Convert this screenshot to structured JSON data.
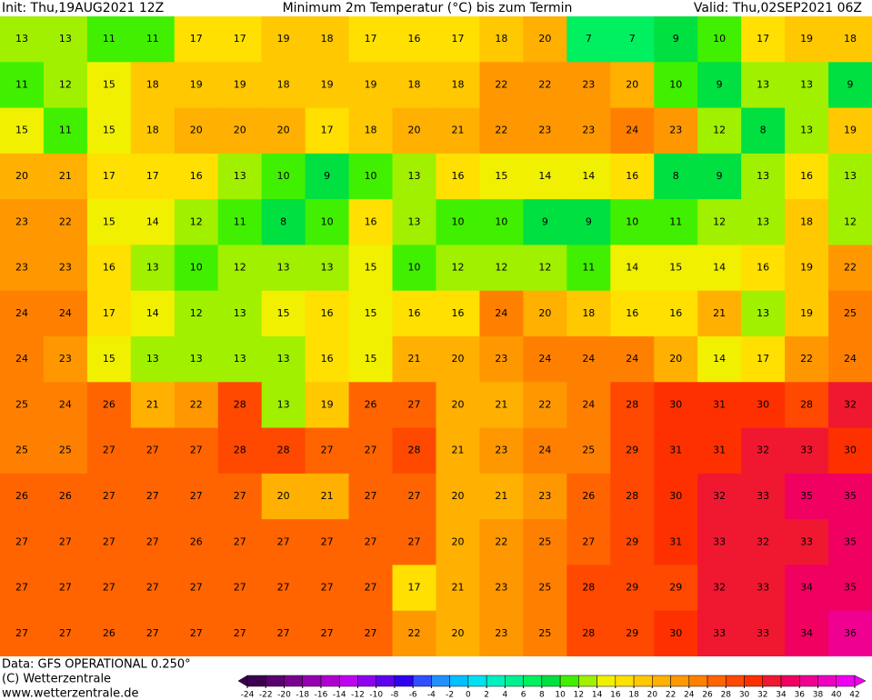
{
  "header": {
    "init": "Init: Thu,19AUG2021 12Z",
    "title": "Minimum 2m Temperatur (°C) bis zum Termin",
    "valid": "Valid: Thu,02SEP2021 06Z"
  },
  "footer": {
    "data": "Data: GFS OPERATIONAL 0.250°",
    "copyright": "(C) Wetterzentrale",
    "url": "www.wetterzentrale.de"
  },
  "colorbar": {
    "ticks": [
      -24,
      -22,
      -20,
      -18,
      -16,
      -14,
      -12,
      -10,
      -8,
      -6,
      -4,
      -2,
      0,
      2,
      4,
      6,
      8,
      10,
      12,
      14,
      16,
      18,
      20,
      22,
      24,
      26,
      28,
      30,
      32,
      34,
      36,
      38,
      40,
      42
    ],
    "colors": [
      "#3c0050",
      "#5a006e",
      "#7a0090",
      "#9600b0",
      "#b000d0",
      "#c000f0",
      "#9000f0",
      "#6000f0",
      "#3000f0",
      "#3050ff",
      "#2090ff",
      "#00c0ff",
      "#00e0f0",
      "#00f0c0",
      "#00f090",
      "#00f060",
      "#00e040",
      "#40f000",
      "#a0f000",
      "#f0f000",
      "#ffe000",
      "#ffc800",
      "#ffb000",
      "#ff9800",
      "#ff8000",
      "#ff6400",
      "#ff4800",
      "#ff3000",
      "#f01830",
      "#f00060",
      "#f00090",
      "#f000c0",
      "#f000f0"
    ]
  },
  "map": {
    "rows": [
      [
        13,
        13,
        11,
        11,
        17,
        17,
        19,
        18,
        17,
        16,
        17,
        18,
        20,
        7,
        7,
        9,
        10,
        17,
        19,
        18
      ],
      [
        11,
        12,
        15,
        18,
        19,
        19,
        18,
        19,
        19,
        18,
        18,
        22,
        22,
        23,
        20,
        10,
        9,
        13,
        13,
        9
      ],
      [
        15,
        11,
        15,
        18,
        20,
        20,
        20,
        17,
        18,
        20,
        21,
        22,
        23,
        23,
        24,
        23,
        12,
        8,
        13,
        19
      ],
      [
        20,
        21,
        17,
        17,
        16,
        13,
        10,
        9,
        10,
        13,
        16,
        15,
        14,
        14,
        16,
        8,
        9,
        13,
        16,
        13
      ],
      [
        23,
        22,
        15,
        14,
        12,
        11,
        8,
        10,
        16,
        13,
        10,
        10,
        9,
        9,
        10,
        11,
        12,
        13,
        18,
        12
      ],
      [
        23,
        23,
        16,
        13,
        10,
        12,
        13,
        13,
        15,
        10,
        12,
        12,
        12,
        11,
        14,
        15,
        14,
        16,
        19,
        22
      ],
      [
        24,
        24,
        17,
        14,
        12,
        13,
        15,
        16,
        15,
        16,
        16,
        24,
        20,
        18,
        16,
        16,
        21,
        13,
        19,
        25
      ],
      [
        24,
        23,
        15,
        13,
        13,
        13,
        13,
        16,
        15,
        21,
        20,
        23,
        24,
        24,
        24,
        20,
        14,
        17,
        22,
        24
      ],
      [
        25,
        24,
        26,
        21,
        22,
        28,
        13,
        19,
        26,
        27,
        20,
        21,
        22,
        24,
        28,
        30,
        31,
        30,
        28,
        32
      ],
      [
        25,
        25,
        27,
        27,
        27,
        28,
        28,
        27,
        27,
        28,
        21,
        23,
        24,
        25,
        29,
        31,
        31,
        32,
        33,
        30
      ],
      [
        26,
        26,
        27,
        27,
        27,
        27,
        20,
        21,
        27,
        27,
        20,
        21,
        23,
        26,
        28,
        30,
        32,
        33,
        35,
        35
      ],
      [
        27,
        27,
        27,
        27,
        26,
        27,
        27,
        27,
        27,
        27,
        20,
        22,
        25,
        27,
        29,
        31,
        33,
        32,
        33,
        35
      ],
      [
        27,
        27,
        27,
        27,
        27,
        27,
        27,
        27,
        27,
        17,
        21,
        23,
        25,
        28,
        29,
        29,
        32,
        33,
        34,
        35
      ],
      [
        27,
        27,
        26,
        27,
        27,
        27,
        27,
        27,
        27,
        22,
        20,
        23,
        25,
        28,
        29,
        30,
        33,
        33,
        34,
        36
      ]
    ]
  }
}
